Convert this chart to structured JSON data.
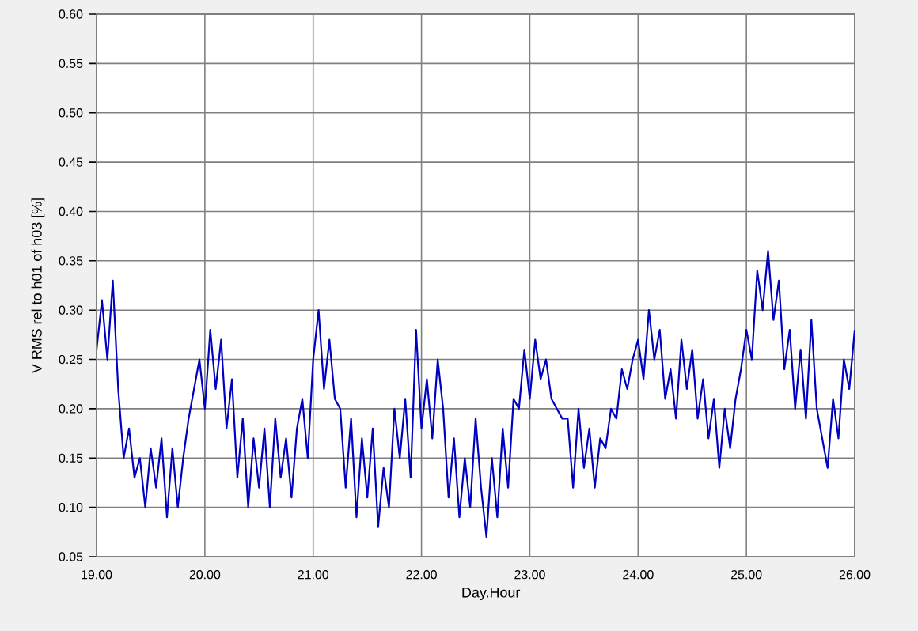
{
  "chart_data": {
    "type": "line",
    "xlabel": "Day.Hour",
    "ylabel": "V RMS rel to h01 of h03 [%]",
    "x": [
      19.0,
      19.05,
      19.1,
      19.15,
      19.2,
      19.25,
      19.3,
      19.35,
      19.4,
      19.45,
      19.5,
      19.55,
      19.6,
      19.65,
      19.7,
      19.75,
      19.8,
      19.85,
      19.9,
      19.95,
      20.0,
      20.05,
      20.1,
      20.15,
      20.2,
      20.25,
      20.3,
      20.35,
      20.4,
      20.45,
      20.5,
      20.55,
      20.6,
      20.65,
      20.7,
      20.75,
      20.8,
      20.85,
      20.9,
      20.95,
      21.0,
      21.05,
      21.1,
      21.15,
      21.2,
      21.25,
      21.3,
      21.35,
      21.4,
      21.45,
      21.5,
      21.55,
      21.6,
      21.65,
      21.7,
      21.75,
      21.8,
      21.85,
      21.9,
      21.95,
      22.0,
      22.05,
      22.1,
      22.15,
      22.2,
      22.25,
      22.3,
      22.35,
      22.4,
      22.45,
      22.5,
      22.55,
      22.6,
      22.65,
      22.7,
      22.75,
      22.8,
      22.85,
      22.9,
      22.95,
      23.0,
      23.05,
      23.1,
      23.15,
      23.2,
      23.25,
      23.3,
      23.35,
      23.4,
      23.45,
      23.5,
      23.55,
      23.6,
      23.65,
      23.7,
      23.75,
      23.8,
      23.85,
      23.9,
      23.95,
      24.0,
      24.05,
      24.1,
      24.15,
      24.2,
      24.25,
      24.3,
      24.35,
      24.4,
      24.45,
      24.5,
      24.55,
      24.6,
      24.65,
      24.7,
      24.75,
      24.8,
      24.85,
      24.9,
      24.95,
      25.0,
      25.05,
      25.1,
      25.15,
      25.2,
      25.25,
      25.3,
      25.35,
      25.4,
      25.45,
      25.5,
      25.55,
      25.6,
      25.65,
      25.7,
      25.75,
      25.8,
      25.85,
      25.9,
      25.95,
      26.0
    ],
    "series": [
      {
        "color": "#0000c0",
        "values": [
          0.26,
          0.31,
          0.25,
          0.33,
          0.22,
          0.15,
          0.18,
          0.13,
          0.15,
          0.1,
          0.16,
          0.12,
          0.17,
          0.09,
          0.16,
          0.1,
          0.15,
          0.19,
          0.22,
          0.25,
          0.2,
          0.28,
          0.22,
          0.27,
          0.18,
          0.23,
          0.13,
          0.19,
          0.1,
          0.17,
          0.12,
          0.18,
          0.1,
          0.19,
          0.13,
          0.17,
          0.11,
          0.18,
          0.21,
          0.15,
          0.25,
          0.3,
          0.22,
          0.27,
          0.21,
          0.2,
          0.12,
          0.19,
          0.09,
          0.17,
          0.11,
          0.18,
          0.08,
          0.14,
          0.1,
          0.2,
          0.15,
          0.21,
          0.13,
          0.28,
          0.18,
          0.23,
          0.17,
          0.25,
          0.2,
          0.11,
          0.17,
          0.09,
          0.15,
          0.1,
          0.19,
          0.12,
          0.07,
          0.15,
          0.09,
          0.18,
          0.12,
          0.21,
          0.2,
          0.26,
          0.21,
          0.27,
          0.23,
          0.25,
          0.21,
          0.2,
          0.19,
          0.19,
          0.12,
          0.2,
          0.14,
          0.18,
          0.12,
          0.17,
          0.16,
          0.2,
          0.19,
          0.24,
          0.22,
          0.25,
          0.27,
          0.23,
          0.3,
          0.25,
          0.28,
          0.21,
          0.24,
          0.19,
          0.27,
          0.22,
          0.26,
          0.19,
          0.23,
          0.17,
          0.21,
          0.14,
          0.2,
          0.16,
          0.21,
          0.24,
          0.28,
          0.25,
          0.34,
          0.3,
          0.36,
          0.29,
          0.33,
          0.24,
          0.28,
          0.2,
          0.26,
          0.19,
          0.29,
          0.2,
          0.17,
          0.14,
          0.21,
          0.17,
          0.25,
          0.22,
          0.28
        ]
      }
    ],
    "xlim": [
      19,
      26
    ],
    "ylim": [
      0.05,
      0.6
    ],
    "xticks": [
      {
        "value": 19,
        "label": "19.00"
      },
      {
        "value": 20,
        "label": "20.00"
      },
      {
        "value": 21,
        "label": "21.00"
      },
      {
        "value": 22,
        "label": "22.00"
      },
      {
        "value": 23,
        "label": "23.00"
      },
      {
        "value": 24,
        "label": "24.00"
      },
      {
        "value": 25,
        "label": "25.00"
      },
      {
        "value": 26,
        "label": "26.00"
      }
    ],
    "yticks": [
      {
        "value": 0.05,
        "label": "0.05"
      },
      {
        "value": 0.1,
        "label": "0.10"
      },
      {
        "value": 0.15,
        "label": "0.15"
      },
      {
        "value": 0.2,
        "label": "0.20"
      },
      {
        "value": 0.25,
        "label": "0.25"
      },
      {
        "value": 0.3,
        "label": "0.30"
      },
      {
        "value": 0.35,
        "label": "0.35"
      },
      {
        "value": 0.4,
        "label": "0.40"
      },
      {
        "value": 0.45,
        "label": "0.45"
      },
      {
        "value": 0.5,
        "label": "0.50"
      },
      {
        "value": 0.55,
        "label": "0.55"
      },
      {
        "value": 0.6,
        "label": "0.60"
      }
    ],
    "grid": true
  }
}
